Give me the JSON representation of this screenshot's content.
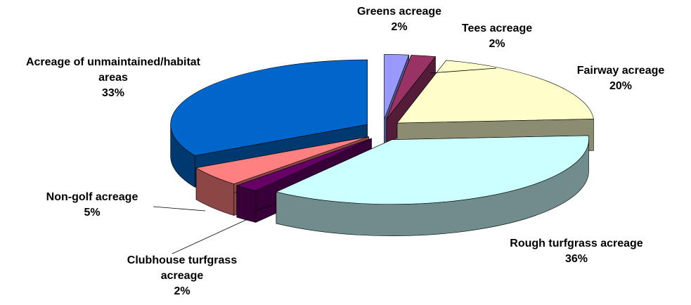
{
  "chart_data": {
    "type": "pie",
    "categories": [
      "Greens acreage",
      "Tees acreage",
      "Fairway acreage",
      "Rough turfgrass acreage",
      "Clubhouse turfgrass acreage",
      "Non-golf acreage",
      "Acreage of unmaintained/habitat areas"
    ],
    "values": [
      2,
      2,
      20,
      36,
      2,
      5,
      33
    ],
    "value_labels": [
      "2%",
      "2%",
      "20%",
      "36%",
      "2%",
      "5%",
      "33%"
    ],
    "colors": [
      "#9999ff",
      "#993366",
      "#ffffcc",
      "#ccffff",
      "#660066",
      "#ff8080",
      "#0066cc"
    ]
  }
}
